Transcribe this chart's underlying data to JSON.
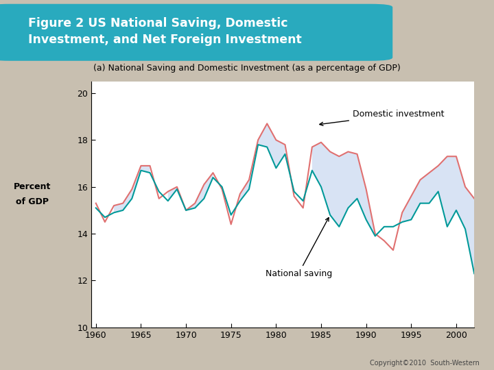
{
  "title_box": "Figure 2 US National Saving, Domestic\nInvestment, and Net Foreign Investment",
  "subtitle": "(a) National Saving and Domestic Investment (as a percentage of GDP)",
  "ylabel_line1": "Percent",
  "ylabel_line2": "of GDP",
  "xlabel_ticks": [
    1960,
    1965,
    1970,
    1975,
    1980,
    1985,
    1990,
    1995,
    2000
  ],
  "yticks": [
    10,
    12,
    14,
    16,
    18,
    20
  ],
  "ylim": [
    10,
    20.5
  ],
  "xlim": [
    1959.5,
    2002.0
  ],
  "years": [
    1960,
    1961,
    1962,
    1963,
    1964,
    1965,
    1966,
    1967,
    1968,
    1969,
    1970,
    1971,
    1972,
    1973,
    1974,
    1975,
    1976,
    1977,
    1978,
    1979,
    1980,
    1981,
    1982,
    1983,
    1984,
    1985,
    1986,
    1987,
    1988,
    1989,
    1990,
    1991,
    1992,
    1993,
    1994,
    1995,
    1996,
    1997,
    1998,
    1999,
    2000,
    2001,
    2002
  ],
  "national_saving": [
    15.1,
    14.7,
    14.9,
    15.0,
    15.5,
    16.7,
    16.6,
    15.8,
    15.4,
    15.9,
    15.0,
    15.1,
    15.5,
    16.4,
    16.0,
    14.8,
    15.4,
    15.9,
    17.8,
    17.7,
    16.8,
    17.4,
    15.8,
    15.4,
    16.7,
    16.0,
    14.8,
    14.3,
    15.1,
    15.5,
    14.6,
    13.9,
    14.3,
    14.3,
    14.5,
    14.6,
    15.3,
    15.3,
    15.8,
    14.3,
    15.0,
    14.2,
    12.3
  ],
  "domestic_investment": [
    15.3,
    14.5,
    15.2,
    15.3,
    15.9,
    16.9,
    16.9,
    15.5,
    15.8,
    16.0,
    15.0,
    15.3,
    16.1,
    16.6,
    15.9,
    14.4,
    15.7,
    16.3,
    18.0,
    18.7,
    18.0,
    17.8,
    15.6,
    15.1,
    17.7,
    17.9,
    17.5,
    17.3,
    17.5,
    17.4,
    15.9,
    14.0,
    13.7,
    13.3,
    14.9,
    15.6,
    16.3,
    16.6,
    16.9,
    17.3,
    17.3,
    16.0,
    15.5
  ],
  "national_saving_color": "#009999",
  "domestic_investment_color": "#E07070",
  "fill_color": "#C8D8F0",
  "fill_alpha": 0.7,
  "background_color": "#C8BFB0",
  "plot_bg_color": "#FFFFFF",
  "title_box_color": "#29AABE",
  "title_text_color": "#FFFFFF",
  "copyright_text": "Copyright©2010  South-Western"
}
